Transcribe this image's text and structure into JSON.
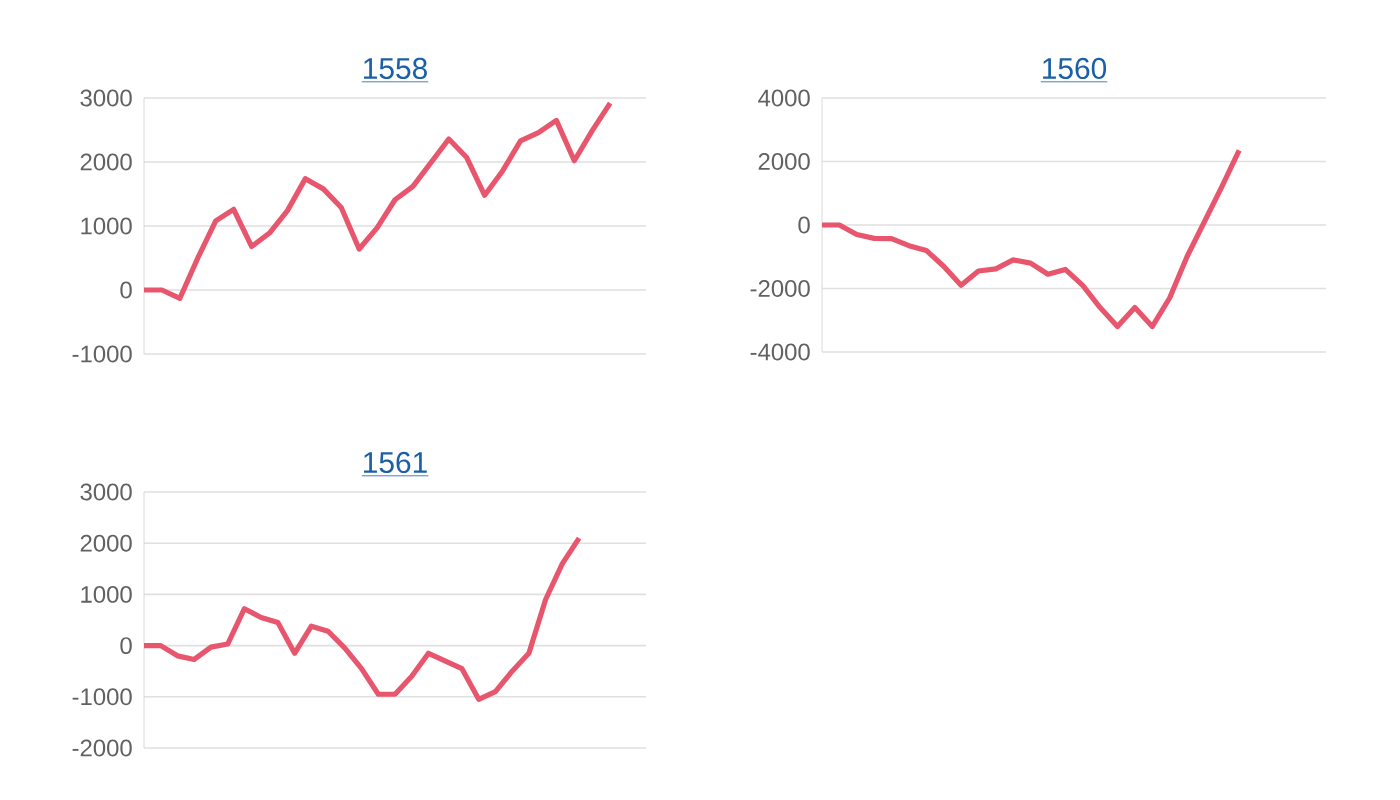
{
  "chart_data": [
    {
      "type": "line",
      "title": "1558",
      "categories": [
        null,
        null,
        null,
        null,
        null,
        null,
        null,
        null,
        null,
        null,
        null,
        null,
        null,
        null,
        null,
        null,
        null,
        null,
        null,
        null,
        null,
        null,
        null,
        null,
        null,
        null,
        null,
        null,
        null
      ],
      "values": [
        0,
        0,
        -130,
        500,
        1080,
        1260,
        680,
        890,
        1240,
        1740,
        1580,
        1290,
        640,
        970,
        1410,
        1620,
        1990,
        2360,
        2070,
        1480,
        1860,
        2330,
        2460,
        2650,
        2020,
        2490,
        2920,
        null,
        null
      ],
      "color": "#e8566e",
      "ylim": [
        -1000,
        3000
      ],
      "yticks": [
        -1000,
        0,
        1000,
        2000,
        3000
      ],
      "grid": "y",
      "tick_labels": "y"
    },
    {
      "type": "line",
      "title": "1560",
      "categories": [
        null,
        null,
        null,
        null,
        null,
        null,
        null,
        null,
        null,
        null,
        null,
        null,
        null,
        null,
        null,
        null,
        null,
        null,
        null,
        null,
        null,
        null,
        null,
        null,
        null,
        null,
        null,
        null,
        null,
        null
      ],
      "values": [
        0,
        0,
        -300,
        -420,
        -430,
        -650,
        -800,
        -1300,
        -1900,
        -1450,
        -1380,
        -1100,
        -1200,
        -1550,
        -1400,
        -1900,
        -2600,
        -3200,
        -2600,
        -3200,
        -2300,
        -1000,
        100,
        1200,
        2350,
        null,
        null,
        null,
        null,
        null
      ],
      "color": "#e8566e",
      "ylim": [
        -4000,
        4000
      ],
      "yticks": [
        -4000,
        -2000,
        0,
        2000,
        4000
      ],
      "grid": "y",
      "tick_labels": "y"
    },
    {
      "type": "line",
      "title": "1561",
      "categories": [
        null,
        null,
        null,
        null,
        null,
        null,
        null,
        null,
        null,
        null,
        null,
        null,
        null,
        null,
        null,
        null,
        null,
        null,
        null,
        null,
        null,
        null,
        null,
        null,
        null,
        null,
        null,
        null,
        null,
        null,
        null
      ],
      "values": [
        0,
        0,
        -200,
        -270,
        -30,
        30,
        720,
        550,
        450,
        -150,
        380,
        280,
        -50,
        -450,
        -950,
        -950,
        -600,
        -150,
        -300,
        -450,
        -1050,
        -900,
        -500,
        -150,
        900,
        1600,
        2100,
        null,
        null,
        null,
        null
      ],
      "color": "#e8566e",
      "ylim": [
        -2000,
        3000
      ],
      "yticks": [
        -2000,
        -1000,
        0,
        1000,
        2000,
        3000
      ],
      "grid": "y",
      "tick_labels": "y"
    }
  ]
}
